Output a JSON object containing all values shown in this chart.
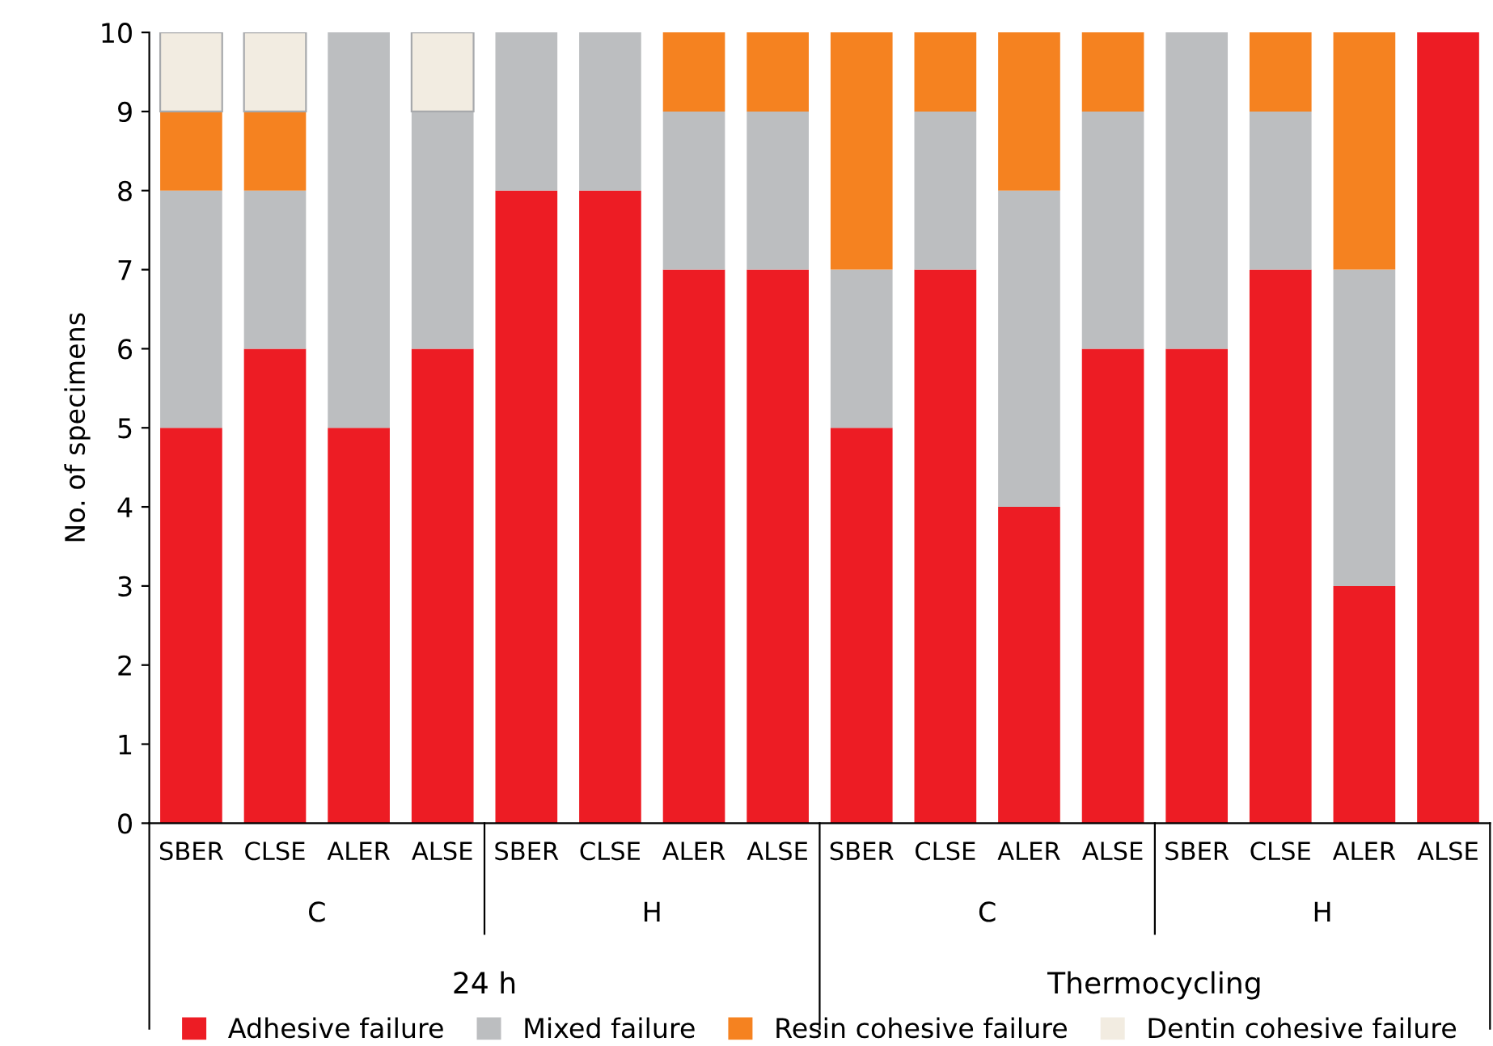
{
  "chart_data": {
    "type": "bar",
    "stacked": true,
    "ylabel": "No. of specimens",
    "categories": [
      "SBER",
      "CLSE",
      "ALER",
      "ALSE",
      "SBER",
      "CLSE",
      "ALER",
      "ALSE",
      "SBER",
      "CLSE",
      "ALER",
      "ALSE",
      "SBER",
      "CLSE",
      "ALER",
      "ALSE"
    ],
    "series": [
      {
        "name": "Adhesive failure",
        "color": "#ed1c24",
        "values": [
          5,
          6,
          5,
          6,
          8,
          8,
          7,
          7,
          5,
          7,
          4,
          6,
          6,
          7,
          3,
          10
        ]
      },
      {
        "name": "Mixed failure",
        "color": "#bcbec0",
        "values": [
          3,
          2,
          5,
          3,
          2,
          2,
          2,
          2,
          2,
          2,
          4,
          3,
          4,
          2,
          4,
          0
        ]
      },
      {
        "name": "Resin cohesive failure",
        "color": "#f58220",
        "values": [
          1,
          1,
          0,
          0,
          0,
          0,
          1,
          1,
          3,
          1,
          2,
          1,
          0,
          1,
          3,
          0
        ]
      },
      {
        "name": "Dentin cohesive failure",
        "color": "#f2ece1",
        "values": [
          1,
          1,
          0,
          1,
          0,
          0,
          0,
          0,
          0,
          0,
          0,
          0,
          0,
          0,
          0,
          0
        ]
      }
    ],
    "annotations": [
      "C",
      "H",
      "C",
      "H",
      "24 h",
      "Thermocycling"
    ],
    "ylim": [
      0,
      10
    ],
    "yticks": [
      0,
      1,
      2,
      3,
      4,
      5,
      6,
      7,
      8,
      9,
      10
    ],
    "grid": false,
    "legend": "bottom"
  }
}
